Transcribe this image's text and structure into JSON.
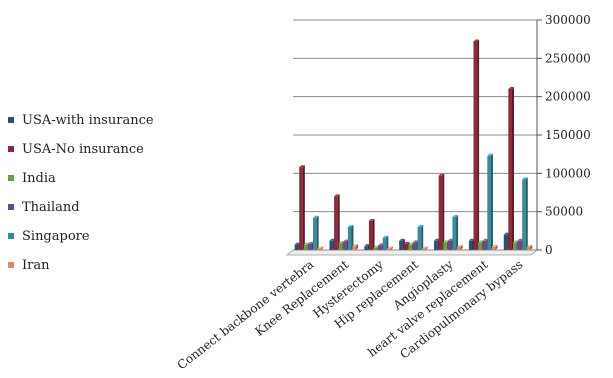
{
  "chart_data": {
    "type": "bar",
    "title": "",
    "xlabel": "",
    "ylabel": "",
    "ylim": [
      0,
      300000
    ],
    "y_ticks": [
      0,
      50000,
      100000,
      150000,
      200000,
      250000,
      300000
    ],
    "y_tick_labels": [
      "0",
      "50000",
      "100000",
      "150000",
      "200000",
      "250000",
      "300000"
    ],
    "y_axis_position": "right",
    "grid": true,
    "legend_position": "left",
    "style": "3d-clustered-column",
    "categories": [
      "Connect backbone vertebra",
      "Knee Replacement",
      "Hysterectomy",
      "Hip replacement",
      "Angioplasty",
      "heart valve replacement",
      "Cardiopulmonary bypass"
    ],
    "series": [
      {
        "name": "USA-with insurance",
        "color": "#2f4f6f",
        "values": [
          7000,
          12000,
          5000,
          12000,
          12000,
          12000,
          20000
        ]
      },
      {
        "name": "USA-No insurance",
        "color": "#8b2a3a",
        "values": [
          108000,
          70000,
          38000,
          8000,
          97000,
          272000,
          210000
        ]
      },
      {
        "name": "India",
        "color": "#6e9a4e",
        "values": [
          7000,
          9000,
          3000,
          7000,
          10000,
          10000,
          10000
        ]
      },
      {
        "name": "Thailand",
        "color": "#6a4c8c",
        "values": [
          8000,
          11000,
          6000,
          10000,
          12000,
          12000,
          12000
        ]
      },
      {
        "name": "Singapore",
        "color": "#3a8c9a",
        "values": [
          42000,
          30000,
          16000,
          30000,
          43000,
          123000,
          92000
        ]
      },
      {
        "name": "Iran",
        "color": "#d9896a",
        "values": [
          2000,
          5000,
          2000,
          2000,
          4000,
          4000,
          4000
        ]
      }
    ]
  }
}
